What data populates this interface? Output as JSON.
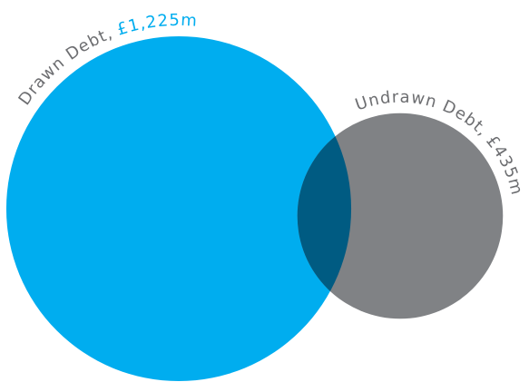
{
  "chart_data": {
    "type": "venn",
    "categories": [
      "Drawn Debt,",
      "Undrawn Debt,"
    ],
    "values": [
      1225,
      435
    ],
    "value_labels": [
      "£1,225m",
      "£435m"
    ],
    "colors": [
      "#00adef",
      "#808285"
    ],
    "overlap_color": "#005b82"
  }
}
